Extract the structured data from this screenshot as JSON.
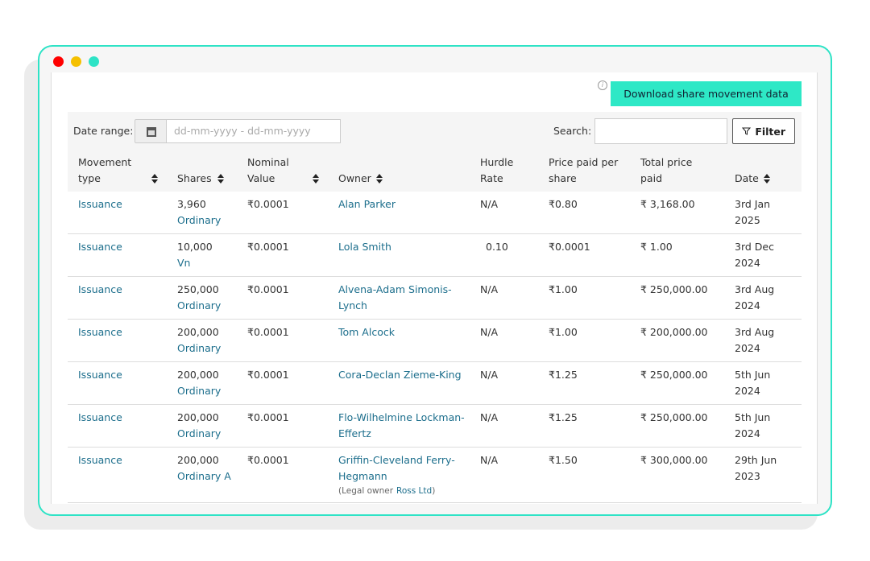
{
  "toolbar": {
    "download_button": "Download share movement data",
    "date_range_label": "Date range:",
    "date_placeholder": "dd-mm-yyyy - dd-mm-yyyy",
    "search_label": "Search:",
    "filter_button": "Filter"
  },
  "table": {
    "columns": [
      "Movement type",
      "Shares",
      "Nominal Value",
      "Owner",
      "Hurdle Rate",
      "Price paid per share",
      "Total price paid",
      "Date"
    ],
    "rows": [
      {
        "type": "Issuance",
        "shares": "3,960",
        "share_class": "Ordinary",
        "nominal": "₹0.0001",
        "owner": "Alan Parker",
        "hurdle": "N/A",
        "price": "₹0.80",
        "total": "₹ 3,168.00",
        "date": "3rd Jan 2025"
      },
      {
        "type": "Issuance",
        "shares": "10,000",
        "share_class": "Vn",
        "nominal": "₹0.0001",
        "owner": "Lola Smith",
        "hurdle": "0.10",
        "price": "₹0.0001",
        "total": "₹ 1.00",
        "date": "3rd Dec 2024"
      },
      {
        "type": "Issuance",
        "shares": "250,000",
        "share_class": "Ordinary",
        "nominal": "₹0.0001",
        "owner": "Alvena-Adam Simonis-Lynch",
        "hurdle": "N/A",
        "price": "₹1.00",
        "total": "₹ 250,000.00",
        "date": "3rd Aug 2024"
      },
      {
        "type": "Issuance",
        "shares": "200,000",
        "share_class": "Ordinary",
        "nominal": "₹0.0001",
        "owner": "Tom Alcock",
        "hurdle": "N/A",
        "price": "₹1.00",
        "total": "₹ 200,000.00",
        "date": "3rd Aug 2024"
      },
      {
        "type": "Issuance",
        "shares": "200,000",
        "share_class": "Ordinary",
        "nominal": "₹0.0001",
        "owner": "Cora-Declan Zieme-King",
        "hurdle": "N/A",
        "price": "₹1.25",
        "total": "₹ 250,000.00",
        "date": "5th Jun 2024"
      },
      {
        "type": "Issuance",
        "shares": "200,000",
        "share_class": "Ordinary",
        "nominal": "₹0.0001",
        "owner": "Flo-Wilhelmine Lockman-Effertz",
        "hurdle": "N/A",
        "price": "₹1.25",
        "total": "₹ 250,000.00",
        "date": "5th Jun 2024"
      },
      {
        "type": "Issuance",
        "shares": "200,000",
        "share_class": "Ordinary A",
        "nominal": "₹0.0001",
        "owner": "Griffin-Cleveland Ferry-Hegmann",
        "owner_note": {
          "prefix": "(Legal owner",
          "name": "Ross Ltd",
          "suffix": ")"
        },
        "hurdle": "N/A",
        "price": "₹1.50",
        "total": "₹ 300,000.00",
        "date": "29th Jun 2023"
      }
    ]
  }
}
